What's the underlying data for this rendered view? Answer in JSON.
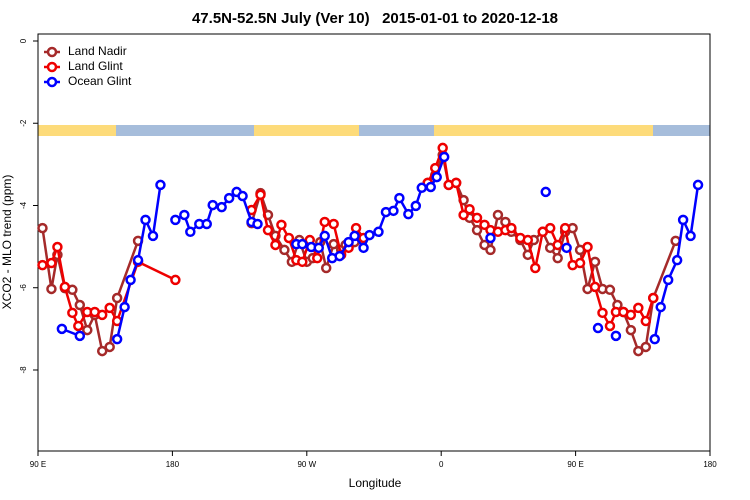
{
  "chart_data": {
    "type": "line",
    "title": "47.5N-52.5N July (Ver 10)   2015-01-01 to 2020-12-18",
    "xlabel": "Longitude",
    "ylabel": "XCO2 - MLO trend (ppm)",
    "xlim": [
      90,
      540
    ],
    "ylim": [
      -9.97,
      0.17
    ],
    "xticks": [
      {
        "value": 90,
        "label": "90 E"
      },
      180,
      {
        "value": 270,
        "label": "90 W"
      },
      {
        "value": 360,
        "label": "0"
      },
      {
        "value": 450,
        "label": "90 E"
      },
      {
        "value": 540,
        "label": "180"
      }
    ],
    "yticks": [
      0,
      -2,
      -4,
      -6,
      -8
    ],
    "legend": "top-left",
    "series": [
      {
        "name": "Land Nadir",
        "color": "#a52a2a",
        "x": [
          93,
          99,
          103,
          108,
          113,
          118,
          123,
          128,
          133,
          138,
          143,
          157,
          null,
          233,
          239,
          244,
          249,
          255,
          260,
          265,
          270,
          274,
          279,
          283,
          288,
          293,
          296,
          302,
          null,
          351,
          356,
          361,
          365,
          370,
          375,
          379,
          384,
          389,
          393,
          398,
          403,
          407,
          413,
          418,
          422,
          428,
          433,
          438,
          443,
          448,
          453,
          458,
          463,
          468,
          473,
          478,
          482,
          487,
          492,
          497,
          502,
          517
        ],
        "values": [
          -4.55,
          -6.03,
          -5.2,
          -6.01,
          -6.05,
          -6.42,
          -7.03,
          -6.66,
          -7.54,
          -7.44,
          -6.25,
          -4.86,
          null,
          -4.43,
          -3.7,
          -4.23,
          -4.74,
          -5.08,
          -5.37,
          -4.84,
          -5.37,
          -5.28,
          -4.89,
          -5.52,
          -4.94,
          -5.08,
          -4.96,
          -4.89,
          null,
          -3.45,
          -3.26,
          -2.77,
          -3.5,
          -3.45,
          -3.87,
          -4.3,
          -4.6,
          -4.96,
          -5.08,
          -4.23,
          -4.4,
          -4.64,
          -4.84,
          -5.2,
          -4.84,
          -4.64,
          -5.03,
          -5.28,
          -4.64,
          -4.55,
          -5.08,
          -6.03,
          -5.37,
          -6.03,
          -6.05,
          -6.42,
          -6.59,
          -7.03,
          -7.54,
          -7.44,
          -6.25,
          -4.86
        ]
      },
      {
        "name": "Land Glint",
        "color": "#ee0000",
        "x": [
          93,
          99,
          103,
          108,
          113,
          117,
          123,
          128,
          133,
          138,
          143,
          157,
          182,
          null,
          233,
          239,
          244,
          249,
          253,
          258,
          263,
          267,
          272,
          277,
          282,
          288,
          293,
          298,
          303,
          308,
          null,
          351,
          356,
          361,
          365,
          370,
          375,
          379,
          384,
          389,
          393,
          398,
          403,
          407,
          413,
          418,
          423,
          428,
          433,
          438,
          443,
          448,
          453,
          458,
          463,
          468,
          473,
          477,
          482,
          487,
          492,
          497,
          502
        ],
        "values": [
          -5.45,
          -5.4,
          -5.01,
          -5.98,
          -6.61,
          -6.93,
          -6.59,
          -6.59,
          -6.66,
          -6.49,
          -6.81,
          -5.37,
          -5.81,
          null,
          -4.11,
          -3.74,
          -4.6,
          -4.96,
          -4.47,
          -4.79,
          -5.33,
          -5.37,
          -4.84,
          -5.28,
          -4.4,
          -4.45,
          -5.2,
          -5.03,
          -4.55,
          -4.79,
          null,
          -3.45,
          -3.09,
          -2.6,
          -3.5,
          -3.45,
          -4.23,
          -4.09,
          -4.3,
          -4.47,
          -4.6,
          -4.64,
          -4.6,
          -4.55,
          -4.79,
          -4.84,
          -5.52,
          -4.64,
          -4.55,
          -4.96,
          -4.55,
          -5.45,
          -5.4,
          -5.01,
          -5.98,
          -6.61,
          -6.93,
          -6.59,
          -6.59,
          -6.66,
          -6.49,
          -6.81,
          -6.25
        ]
      },
      {
        "name": "Ocean Glint",
        "color": "#0000ff",
        "x": [
          106,
          118,
          null,
          143,
          148,
          152,
          157,
          162,
          167,
          172,
          null,
          182,
          188,
          192,
          198,
          203,
          207,
          213,
          218,
          223,
          227,
          233,
          237,
          null,
          263,
          267,
          273,
          278,
          282,
          287,
          292,
          298,
          302,
          308,
          312,
          318,
          323,
          328,
          332,
          338,
          343,
          347,
          353,
          357,
          362,
          null,
          393,
          null,
          430,
          null,
          444,
          null,
          465,
          null,
          477,
          null,
          503,
          507,
          512,
          518,
          522,
          527,
          532
        ],
        "values": [
          -7.0,
          -7.17,
          null,
          -7.25,
          -6.47,
          -5.81,
          -5.33,
          -4.35,
          -4.74,
          -3.5,
          null,
          -4.35,
          -4.23,
          -4.64,
          -4.45,
          -4.45,
          -3.99,
          -4.04,
          -3.82,
          -3.67,
          -3.77,
          -4.4,
          -4.45,
          null,
          -4.94,
          -4.94,
          -5.01,
          -5.03,
          -4.74,
          -5.28,
          -5.23,
          -4.89,
          -4.74,
          -5.03,
          -4.72,
          -4.64,
          -4.16,
          -4.13,
          -3.82,
          -4.21,
          -4.01,
          -3.57,
          -3.55,
          -3.31,
          -2.82,
          null,
          -4.79,
          null,
          -3.67,
          null,
          -5.03,
          null,
          -6.98,
          null,
          -7.17,
          null,
          -7.25,
          -6.47,
          -5.81,
          -5.33,
          -4.35,
          -4.74,
          -3.5
        ]
      }
    ]
  }
}
